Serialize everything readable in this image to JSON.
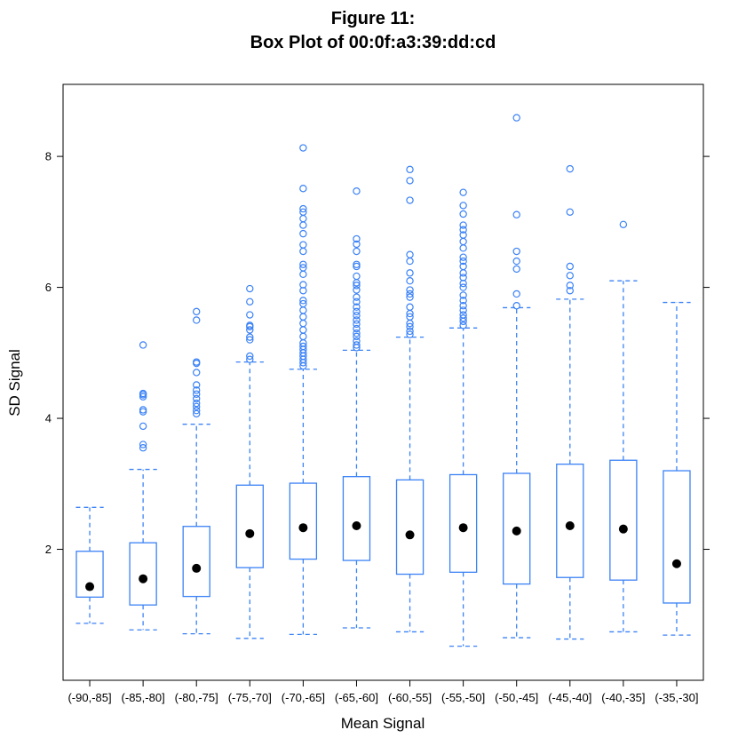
{
  "chart_data": {
    "type": "box",
    "title_line1": "Figure 11:",
    "title_line2": "Box Plot of 00:0f:a3:39:dd:cd",
    "xlabel": "Mean Signal",
    "ylabel": "SD Signal",
    "ylim": [
      0,
      9.1
    ],
    "yticks": [
      2,
      4,
      6,
      8
    ],
    "colors": {
      "box": "#3b82f6",
      "median": "#000000",
      "frame": "#000000"
    },
    "categories": [
      "(-90,-85]",
      "(-85,-80]",
      "(-80,-75]",
      "(-75,-70]",
      "(-70,-65]",
      "(-65,-60]",
      "(-60,-55]",
      "(-55,-50]",
      "(-50,-45]",
      "(-45,-40]",
      "(-40,-35]",
      "(-35,-30]"
    ],
    "boxes": [
      {
        "whisker_low": 0.87,
        "q1": 1.27,
        "median": 1.43,
        "q3": 1.97,
        "whisker_high": 2.64,
        "outliers": []
      },
      {
        "whisker_low": 0.77,
        "q1": 1.15,
        "median": 1.55,
        "q3": 2.1,
        "whisker_high": 3.22,
        "outliers": [
          3.55,
          3.6,
          3.88,
          4.1,
          4.13,
          4.33,
          4.36,
          4.38,
          5.12
        ]
      },
      {
        "whisker_low": 0.71,
        "q1": 1.28,
        "median": 1.71,
        "q3": 2.35,
        "whisker_high": 3.91,
        "outliers": [
          4.07,
          4.12,
          4.18,
          4.23,
          4.3,
          4.37,
          4.43,
          4.51,
          4.7,
          4.84,
          4.86,
          5.5,
          5.63
        ]
      },
      {
        "whisker_low": 0.64,
        "q1": 1.72,
        "median": 2.24,
        "q3": 2.98,
        "whisker_high": 4.86,
        "outliers": [
          4.9,
          4.95,
          5.2,
          5.24,
          5.35,
          5.4,
          5.42,
          5.58,
          5.78,
          5.98
        ]
      },
      {
        "whisker_low": 0.7,
        "q1": 1.85,
        "median": 2.33,
        "q3": 3.01,
        "whisker_high": 4.75,
        "outliers": [
          4.8,
          4.85,
          4.9,
          4.95,
          5.0,
          5.05,
          5.1,
          5.15,
          5.25,
          5.35,
          5.45,
          5.55,
          5.65,
          5.75,
          5.8,
          5.95,
          6.04,
          6.2,
          6.3,
          6.35,
          6.55,
          6.65,
          6.82,
          6.95,
          7.05,
          7.15,
          7.2,
          7.51,
          8.13
        ]
      },
      {
        "whisker_low": 0.8,
        "q1": 1.83,
        "median": 2.36,
        "q3": 3.11,
        "whisker_high": 5.04,
        "outliers": [
          5.08,
          5.12,
          5.18,
          5.25,
          5.3,
          5.37,
          5.44,
          5.5,
          5.57,
          5.63,
          5.7,
          5.78,
          5.85,
          5.96,
          6.03,
          6.07,
          6.17,
          6.32,
          6.35,
          6.55,
          6.66,
          6.74,
          7.47
        ]
      },
      {
        "whisker_low": 0.74,
        "q1": 1.62,
        "median": 2.22,
        "q3": 3.06,
        "whisker_high": 5.24,
        "outliers": [
          5.28,
          5.33,
          5.4,
          5.45,
          5.55,
          5.6,
          5.7,
          5.85,
          5.9,
          5.96,
          6.1,
          6.22,
          6.4,
          6.5,
          7.33,
          7.63,
          7.8
        ]
      },
      {
        "whisker_low": 0.52,
        "q1": 1.65,
        "median": 2.33,
        "q3": 3.14,
        "whisker_high": 5.38,
        "outliers": [
          5.42,
          5.48,
          5.53,
          5.58,
          5.65,
          5.72,
          5.8,
          5.88,
          6.0,
          6.06,
          6.15,
          6.22,
          6.32,
          6.4,
          6.46,
          6.6,
          6.7,
          6.8,
          6.88,
          6.95,
          7.12,
          7.25,
          7.45
        ]
      },
      {
        "whisker_low": 0.65,
        "q1": 1.47,
        "median": 2.28,
        "q3": 3.16,
        "whisker_high": 5.69,
        "outliers": [
          5.72,
          5.9,
          6.28,
          6.4,
          6.55,
          7.11,
          8.59
        ]
      },
      {
        "whisker_low": 0.63,
        "q1": 1.57,
        "median": 2.36,
        "q3": 3.3,
        "whisker_high": 5.82,
        "outliers": [
          5.95,
          6.03,
          6.18,
          6.32,
          7.15,
          7.81
        ]
      },
      {
        "whisker_low": 0.74,
        "q1": 1.53,
        "median": 2.31,
        "q3": 3.36,
        "whisker_high": 6.1,
        "outliers": [
          6.96
        ]
      },
      {
        "whisker_low": 0.69,
        "q1": 1.18,
        "median": 1.78,
        "q3": 3.2,
        "whisker_high": 5.77,
        "outliers": []
      }
    ]
  }
}
